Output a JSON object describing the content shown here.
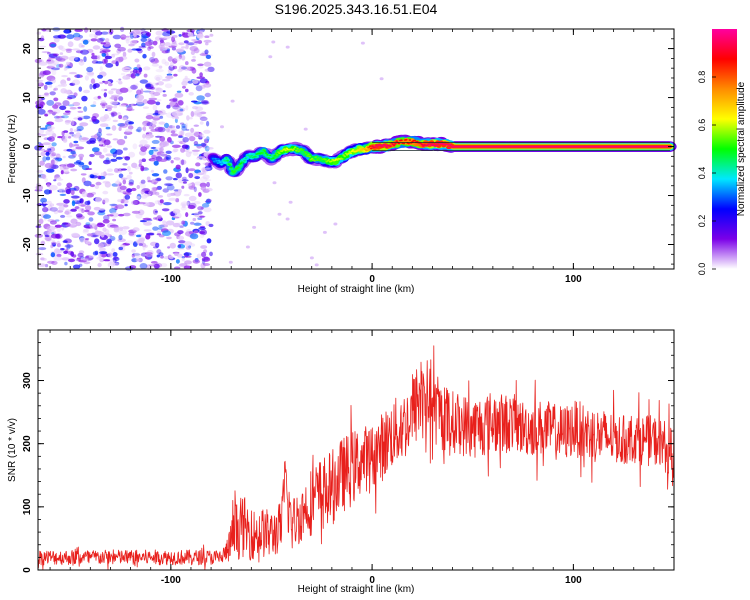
{
  "title": "S196.2025.343.16.51.E04",
  "chart_data": [
    {
      "type": "heatmap",
      "id": "spectrogram",
      "xlabel": "Height of straight line (km)",
      "ylabel": "Frequency (Hz)",
      "xlim": [
        -166,
        150
      ],
      "ylim": [
        -25,
        24
      ],
      "xticks": [
        -100,
        0,
        100
      ],
      "yticks": [
        -20,
        -10,
        0,
        10,
        20
      ],
      "noise_region_x": [
        -166,
        -80
      ],
      "ridge": {
        "x": [
          -79,
          -75,
          -72,
          -69,
          -66,
          -62,
          -58,
          -54,
          -50,
          -46,
          -42,
          -38,
          -34,
          -30,
          -26,
          -22,
          -18,
          -14,
          -10,
          -6,
          -3,
          0,
          5,
          10,
          15,
          20,
          25,
          30,
          35,
          40,
          60,
          80,
          100,
          120,
          140,
          148
        ],
        "y": [
          -2.5,
          -3.5,
          -2.5,
          -5.5,
          -4,
          -2,
          -2,
          -1,
          -2.5,
          -1,
          -0.5,
          -0.5,
          -1,
          -2.5,
          -2.5,
          -3,
          -3,
          -2,
          -1,
          -0.5,
          -0.5,
          0,
          0,
          0.5,
          1,
          1,
          0.5,
          0.5,
          0.5,
          0,
          0,
          0,
          0,
          0,
          0,
          0
        ],
        "amplitude": [
          0.3,
          0.35,
          0.45,
          0.5,
          0.5,
          0.4,
          0.45,
          0.5,
          0.45,
          0.55,
          0.6,
          0.55,
          0.5,
          0.55,
          0.5,
          0.55,
          0.6,
          0.55,
          0.6,
          0.65,
          0.7,
          0.9,
          0.95,
          0.9,
          0.85,
          0.85,
          0.9,
          0.95,
          0.95,
          0.95,
          0.95,
          0.95,
          0.95,
          0.95,
          0.95,
          0.95
        ]
      },
      "colorbar": {
        "label": "Normalized spectral amplitude",
        "ticks": [
          0.0,
          0.2,
          0.4,
          0.6,
          0.8
        ],
        "range": [
          0,
          1
        ],
        "colors": [
          "#ffffff",
          "#7b00e8",
          "#0000ff",
          "#00e8ff",
          "#00ff00",
          "#ffff00",
          "#ff8c00",
          "#ff0000",
          "#ff00a0"
        ]
      }
    },
    {
      "type": "line",
      "id": "snr",
      "xlabel": "Height of straight line (km)",
      "ylabel": "SNR (10 * v/v)",
      "xlim": [
        -166,
        150
      ],
      "ylim": [
        0,
        380
      ],
      "xticks": [
        -100,
        0,
        100
      ],
      "yticks": [
        0,
        100,
        200,
        300
      ],
      "color": "#e8201c",
      "series": [
        {
          "name": "SNR",
          "x": [
            -166,
            -150,
            -130,
            -110,
            -90,
            -75,
            -72,
            -68,
            -64,
            -60,
            -55,
            -50,
            -45,
            -43,
            -40,
            -35,
            -30,
            -25,
            -20,
            -15,
            -10,
            -5,
            0,
            5,
            10,
            15,
            20,
            23,
            25,
            28,
            32,
            36,
            40,
            45,
            50,
            55,
            60,
            65,
            70,
            75,
            80,
            85,
            90,
            95,
            100,
            105,
            110,
            115,
            120,
            125,
            130,
            135,
            140,
            145,
            148
          ],
          "y": [
            20,
            20,
            20,
            20,
            20,
            20,
            30,
            60,
            70,
            55,
            60,
            55,
            70,
            140,
            70,
            90,
            110,
            120,
            130,
            150,
            160,
            175,
            180,
            195,
            215,
            225,
            245,
            270,
            290,
            270,
            250,
            240,
            235,
            230,
            225,
            230,
            235,
            230,
            235,
            225,
            225,
            225,
            220,
            215,
            225,
            220,
            215,
            210,
            210,
            205,
            210,
            205,
            205,
            200,
            180
          ],
          "noise_amplitude": [
            12,
            12,
            12,
            12,
            12,
            12,
            20,
            45,
            50,
            40,
            40,
            40,
            40,
            60,
            45,
            45,
            55,
            60,
            60,
            60,
            60,
            55,
            50,
            55,
            55,
            55,
            60,
            65,
            70,
            60,
            55,
            55,
            50,
            50,
            50,
            50,
            50,
            50,
            45,
            45,
            45,
            45,
            45,
            45,
            45,
            45,
            45,
            45,
            40,
            40,
            40,
            40,
            40,
            40,
            45
          ]
        }
      ]
    }
  ]
}
